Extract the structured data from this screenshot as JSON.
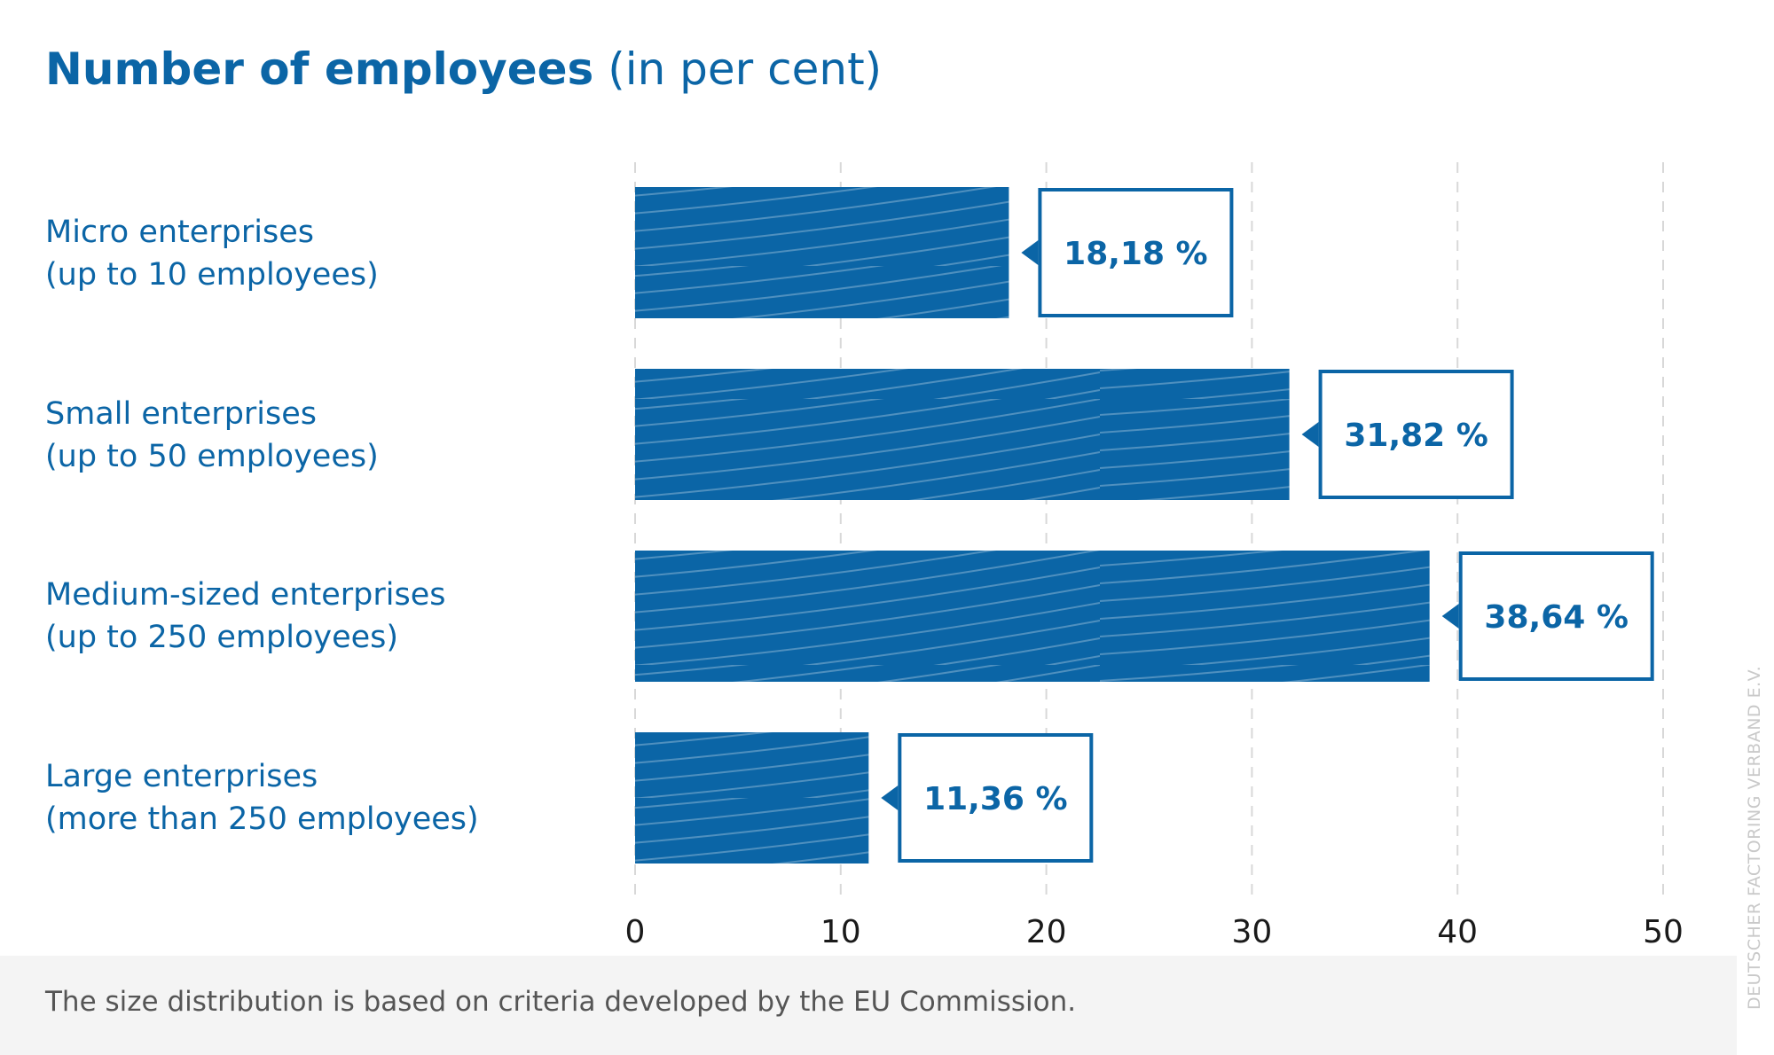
{
  "title": {
    "main": "Number of employees",
    "sub": "(in per cent)"
  },
  "chart_data": {
    "type": "bar",
    "orientation": "horizontal",
    "categories": [
      {
        "line1": "Micro enterprises",
        "line2": "(up to 10 employees)"
      },
      {
        "line1": "Small enterprises",
        "line2": "(up to 50 employees)"
      },
      {
        "line1": "Medium-sized enterprises",
        "line2": "(up to 250 employees)"
      },
      {
        "line1": "Large enterprises",
        "line2": "(more than 250 employees)"
      }
    ],
    "values": [
      18.18,
      31.82,
      38.64,
      11.36
    ],
    "value_labels": [
      "18,18 %",
      "31,82 %",
      "38,64 %",
      "11,36 %"
    ],
    "xlim": [
      0,
      50
    ],
    "xticks": [
      0,
      10,
      20,
      30,
      40,
      50
    ],
    "grid": "vertical dashed",
    "bar_color": "#0b65a6"
  },
  "footnote": "The size distribution is based on criteria developed by the EU Commission.",
  "credit": "DEUTSCHER FACTORING VERBAND E.V."
}
